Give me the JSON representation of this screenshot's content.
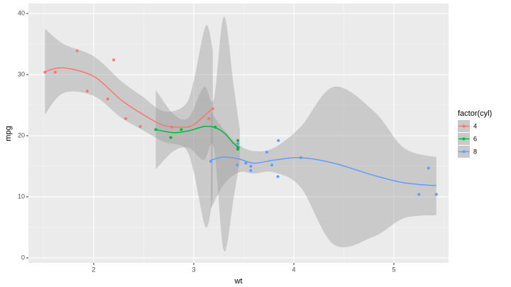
{
  "chart_data": {
    "type": "scatter",
    "x_label": "wt",
    "y_label": "mpg",
    "legend_title": "factor(cyl)",
    "legend_position": "right",
    "xlim": [
      1.347,
      5.546
    ],
    "ylim": [
      -0.81,
      41.63
    ],
    "xticks": [
      2,
      3,
      4,
      5
    ],
    "yticks": [
      0,
      10,
      20,
      30,
      40
    ],
    "xminor": [
      1.5,
      2.5,
      3.5,
      4.5,
      5.5
    ],
    "yminor": [
      5,
      15,
      25,
      35
    ],
    "grid": true,
    "series": [
      {
        "name": "4",
        "color": "#F8766D",
        "x": [
          2.32,
          3.19,
          3.15,
          2.2,
          1.615,
          1.835,
          2.465,
          1.935,
          2.14,
          1.513,
          2.78
        ],
        "y": [
          22.8,
          24.4,
          22.8,
          32.4,
          30.4,
          33.9,
          21.5,
          27.3,
          26,
          30.4,
          21.4
        ],
        "smooth": {
          "x": [
            1.513,
            1.7,
            2.0,
            2.27,
            2.48,
            2.7,
            2.91,
            3.0,
            3.12,
            3.19
          ],
          "y": [
            30.5,
            31.1,
            29.7,
            25.9,
            23.6,
            21.7,
            21.4,
            21.8,
            23.5,
            24.5
          ],
          "lower": [
            23.5,
            27,
            26.5,
            23,
            21,
            19,
            18,
            14,
            5,
            10
          ],
          "upper": [
            37.5,
            35,
            33,
            29,
            26.5,
            24,
            25,
            29,
            38,
            34
          ]
        }
      },
      {
        "name": "6",
        "color": "#00BA38",
        "x": [
          2.62,
          2.875,
          3.215,
          3.44,
          3.44,
          3.44,
          2.77
        ],
        "y": [
          21,
          21,
          21.4,
          18.1,
          19.2,
          17.8,
          19.7
        ],
        "smooth": {
          "x": [
            2.62,
            2.8,
            2.95,
            3.1,
            3.2,
            3.3,
            3.4,
            3.46
          ],
          "y": [
            21,
            20.5,
            20.8,
            21.5,
            21.4,
            20.5,
            18.7,
            18
          ],
          "lower": [
            14.5,
            17.5,
            18,
            16,
            18,
            1.2,
            10,
            16
          ],
          "upper": [
            27.5,
            23.5,
            23,
            28,
            26,
            39.5,
            28,
            21
          ]
        }
      },
      {
        "name": "8",
        "color": "#619CFF",
        "x": [
          3.44,
          3.57,
          4.07,
          3.73,
          3.78,
          5.25,
          5.424,
          5.345,
          3.52,
          3.435,
          3.84,
          3.845,
          3.17,
          3.57
        ],
        "y": [
          18.7,
          14.3,
          16.4,
          17.3,
          15.2,
          10.4,
          10.4,
          14.7,
          15.5,
          15.2,
          13.3,
          19.2,
          15.8,
          15
        ],
        "smooth": {
          "x": [
            3.17,
            3.3,
            3.45,
            3.6,
            3.8,
            4.07,
            4.4,
            4.8,
            5.1,
            5.424
          ],
          "y": [
            16,
            16.5,
            16.2,
            15.5,
            16,
            16.4,
            15.5,
            13.5,
            12.3,
            11.8
          ],
          "lower": [
            8,
            12,
            14,
            13.8,
            14,
            11.5,
            2.2,
            3.5,
            6.5,
            7
          ],
          "upper": [
            24,
            21,
            18.5,
            17.5,
            18,
            21.5,
            28,
            24,
            18,
            16.5
          ]
        }
      }
    ]
  }
}
